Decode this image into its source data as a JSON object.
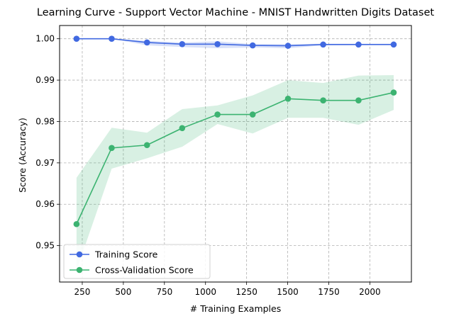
{
  "chart_data": {
    "type": "line",
    "title": "Learning Curve - Support Vector Machine - MNIST Handwritten Digits Dataset",
    "xlabel": "# Training Examples",
    "ylabel": "Score (Accuracy)",
    "xlim": [
      112,
      2253
    ],
    "ylim": [
      0.9412,
      1.0032
    ],
    "xticks": [
      250,
      500,
      750,
      1000,
      1250,
      1500,
      1750,
      2000
    ],
    "xtick_labels": [
      "250",
      "500",
      "750",
      "1000",
      "1250",
      "1500",
      "1750",
      "2000"
    ],
    "yticks": [
      0.95,
      0.96,
      0.97,
      0.98,
      0.99,
      1.0
    ],
    "ytick_labels": [
      "0.95",
      "0.96",
      "0.97",
      "0.98",
      "0.99",
      "1.00"
    ],
    "grid": true,
    "grid_style": "dashed",
    "legend_position": "lower-left",
    "x": [
      215,
      429,
      644,
      858,
      1073,
      1287,
      1502,
      1716,
      1931,
      2145
    ],
    "series": [
      {
        "name": "Training Score",
        "color": "#4169e1",
        "values": [
          1.0,
          1.0,
          0.9991,
          0.9987,
          0.9987,
          0.9984,
          0.9983,
          0.9986,
          0.9986,
          0.9986
        ],
        "band_lower": [
          1.0,
          1.0,
          0.9984,
          0.998,
          0.9977,
          0.9979,
          0.9977,
          0.9984,
          0.9985,
          0.9985
        ],
        "band_upper": [
          1.0,
          1.0,
          0.9995,
          0.9991,
          0.9994,
          0.9987,
          0.9987,
          0.9988,
          0.9988,
          0.9988
        ]
      },
      {
        "name": "Cross-Validation Score",
        "color": "#3cb371",
        "values": [
          0.9552,
          0.9736,
          0.9743,
          0.9784,
          0.9817,
          0.9817,
          0.9855,
          0.9851,
          0.9851,
          0.987
        ],
        "band_lower": [
          0.944,
          0.9686,
          0.9711,
          0.9739,
          0.9794,
          0.9771,
          0.9809,
          0.9809,
          0.9792,
          0.9828
        ],
        "band_upper": [
          0.9664,
          0.9785,
          0.9773,
          0.983,
          0.9839,
          0.9863,
          0.99,
          0.9893,
          0.9911,
          0.9912
        ]
      }
    ]
  }
}
